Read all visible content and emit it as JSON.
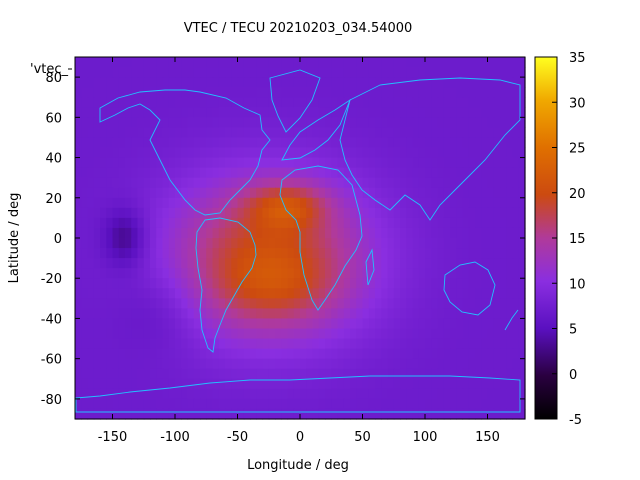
{
  "chart_data": {
    "type": "heatmap",
    "title": "VTEC / TECU 20210203_034.54000",
    "xlabel": "Longitude / deg",
    "ylabel": "Latitude / deg",
    "xlim": [
      -180,
      180
    ],
    "ylim": [
      -90,
      90
    ],
    "x_ticks": [
      "-150",
      "-100",
      "-50",
      "0",
      "50",
      "100",
      "150"
    ],
    "y_ticks": [
      "-80",
      "-60",
      "-40",
      "-20",
      "0",
      "20",
      "40",
      "60",
      "80"
    ],
    "colorbar": {
      "range": [
        -5,
        35
      ],
      "ticks": [
        "-5",
        "0",
        "5",
        "10",
        "15",
        "20",
        "25",
        "30",
        "35"
      ]
    },
    "legend_label": "'vtec_",
    "grid": false,
    "background_value": 7,
    "features": [
      {
        "name": "main-anomaly",
        "lon": -25,
        "lat": -10,
        "sigma_lon": 55,
        "sigma_lat": 28,
        "amplitude": 13
      },
      {
        "name": "northern-crest",
        "lon": -10,
        "lat": 16,
        "sigma_lon": 22,
        "sigma_lat": 8,
        "amplitude": 7
      },
      {
        "name": "southern-crest",
        "lon": -20,
        "lat": -25,
        "sigma_lon": 35,
        "sigma_lat": 12,
        "amplitude": 3
      },
      {
        "name": "pacific-depletion",
        "lon": -140,
        "lat": 0,
        "sigma_lon": 12,
        "sigma_lat": 10,
        "amplitude": -5
      },
      {
        "name": "south-pacific-minimum",
        "lon": -110,
        "lat": -35,
        "sigma_lon": 25,
        "sigma_lat": 15,
        "amplitude": -2
      }
    ]
  }
}
